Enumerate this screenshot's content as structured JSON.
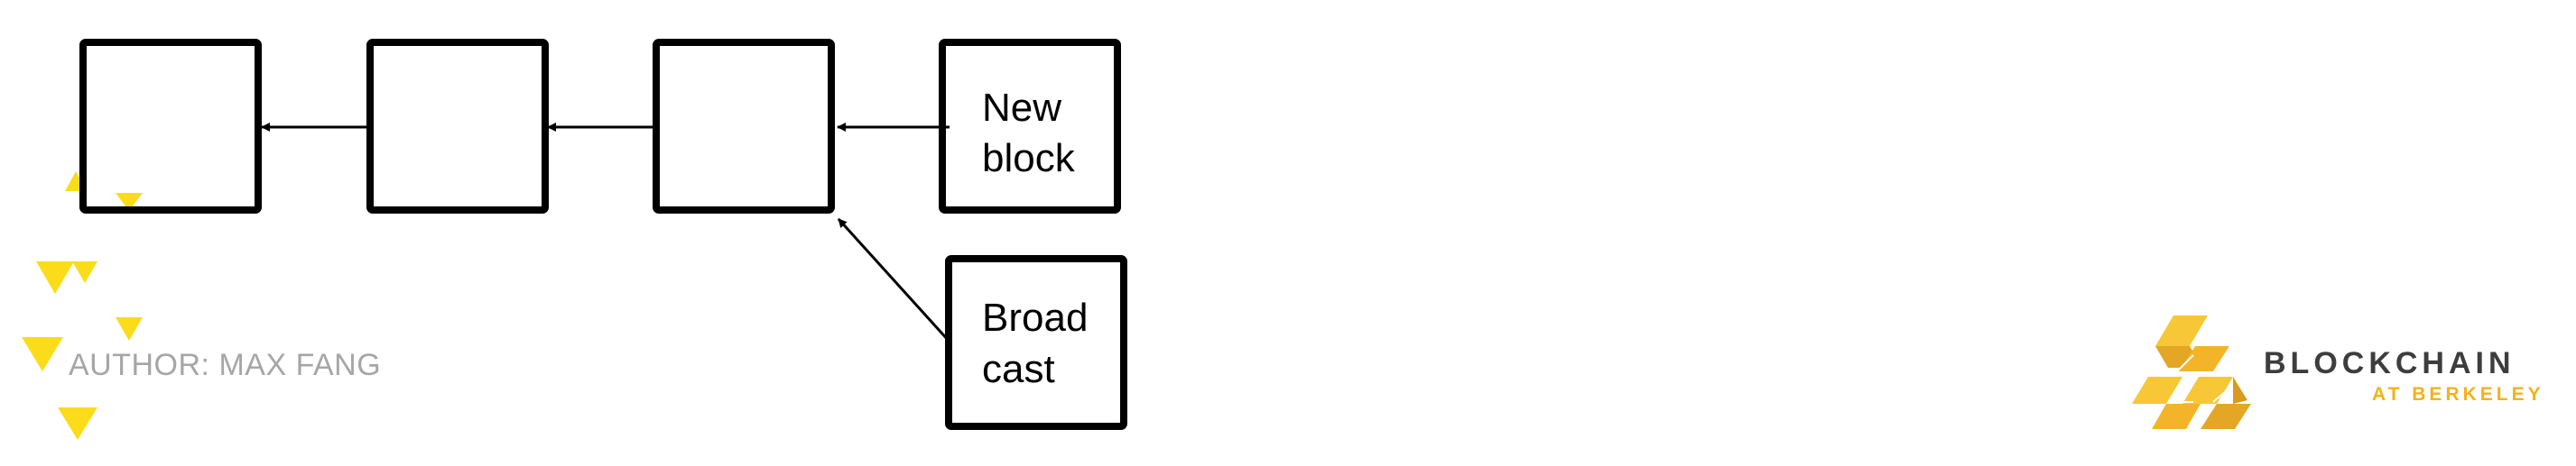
{
  "blocks": [
    {
      "id": "block-1",
      "lines": []
    },
    {
      "id": "block-2",
      "lines": []
    },
    {
      "id": "block-3",
      "lines": []
    },
    {
      "id": "new-block",
      "lines": [
        "New",
        "block"
      ]
    },
    {
      "id": "broadcast-block",
      "lines": [
        "Broad",
        "cast"
      ]
    }
  ],
  "footer": {
    "author": "AUTHOR: MAX FANG",
    "brand": {
      "name": "BLOCKCHAIN",
      "subtitle": "AT BERKELEY"
    }
  },
  "colors": {
    "block_stroke": "#000000",
    "author_text": "#a6a6a6",
    "brand_text": "#3d3d3d",
    "brand_accent": "#f2b31a",
    "decor_yellow": "#fbdc1b"
  },
  "icons": [
    "triangle-decoration-icon",
    "blockchain-logo-icon"
  ]
}
